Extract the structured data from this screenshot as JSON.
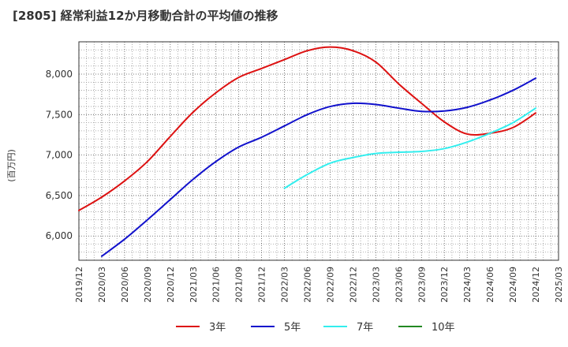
{
  "title": "[2805]  経常利益12か月移動合計の平均値の推移",
  "chart_data": {
    "type": "line",
    "title": "[2805]  経常利益12か月移動合計の平均値の推移",
    "xlabel": "",
    "ylabel": "(百万円)",
    "ylim": [
      5700,
      8400
    ],
    "yticks": [
      6000,
      6500,
      7000,
      7500,
      8000
    ],
    "ytick_labels": [
      "6,000",
      "6,500",
      "7,000",
      "7,500",
      "8,000"
    ],
    "x_ticks": [
      "2019/12",
      "2020/03",
      "2020/06",
      "2020/09",
      "2020/12",
      "2021/03",
      "2021/06",
      "2021/09",
      "2021/12",
      "2022/03",
      "2022/06",
      "2022/09",
      "2022/12",
      "2023/03",
      "2023/06",
      "2023/09",
      "2023/12",
      "2024/03",
      "2024/06",
      "2024/09",
      "2024/12",
      "2025/03"
    ],
    "grid": true,
    "legend_position": "bottom",
    "series": [
      {
        "name": "3年",
        "color": "#dd1111",
        "x": [
          "2019/12",
          "2020/03",
          "2020/06",
          "2020/09",
          "2020/12",
          "2021/03",
          "2021/06",
          "2021/09",
          "2021/12",
          "2022/03",
          "2022/06",
          "2022/09",
          "2022/12",
          "2023/03",
          "2023/06",
          "2023/09",
          "2023/12",
          "2024/03",
          "2024/06",
          "2024/09",
          "2024/12"
        ],
        "values": [
          6315,
          6480,
          6680,
          6920,
          7230,
          7530,
          7770,
          7960,
          8070,
          8180,
          8290,
          8335,
          8290,
          8150,
          7880,
          7640,
          7410,
          7260,
          7270,
          7340,
          7520
        ]
      },
      {
        "name": "5年",
        "color": "#1111cc",
        "x": [
          "2020/03",
          "2020/06",
          "2020/09",
          "2020/12",
          "2021/03",
          "2021/06",
          "2021/09",
          "2021/12",
          "2022/03",
          "2022/06",
          "2022/09",
          "2022/12",
          "2023/03",
          "2023/06",
          "2023/09",
          "2023/12",
          "2024/03",
          "2024/06",
          "2024/09",
          "2024/12"
        ],
        "values": [
          5750,
          5960,
          6200,
          6450,
          6700,
          6920,
          7100,
          7220,
          7360,
          7500,
          7600,
          7640,
          7625,
          7580,
          7540,
          7545,
          7590,
          7680,
          7800,
          7950
        ]
      },
      {
        "name": "7年",
        "color": "#33eeee",
        "x": [
          "2022/03",
          "2022/06",
          "2022/09",
          "2022/12",
          "2023/03",
          "2023/06",
          "2023/09",
          "2023/12",
          "2024/03",
          "2024/06",
          "2024/09",
          "2024/12"
        ],
        "values": [
          6590,
          6760,
          6900,
          6970,
          7020,
          7035,
          7045,
          7080,
          7160,
          7270,
          7400,
          7580
        ]
      },
      {
        "name": "10年",
        "color": "#228822",
        "x": [],
        "values": []
      }
    ]
  }
}
